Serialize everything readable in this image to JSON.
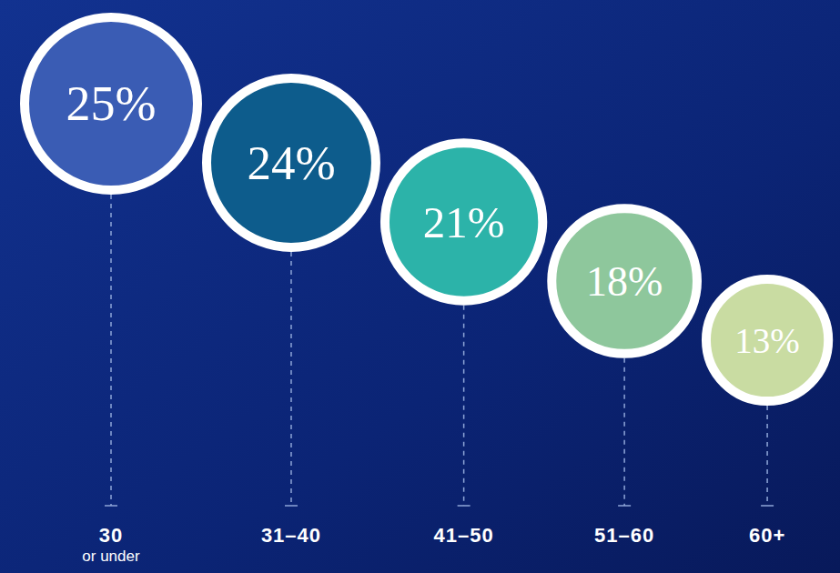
{
  "chart_data": {
    "type": "bubble",
    "categories": [
      "30 or under",
      "31–40",
      "41–50",
      "51–60",
      "60+"
    ],
    "values": [
      25,
      24,
      21,
      18,
      13
    ],
    "value_labels": [
      "25%",
      "24%",
      "21%",
      "18%",
      "13%"
    ],
    "colors": [
      "#3a5cb4",
      "#0d5c8c",
      "#2cb3a9",
      "#8ec79c",
      "#c9dca2"
    ],
    "data_labels": true
  }
}
